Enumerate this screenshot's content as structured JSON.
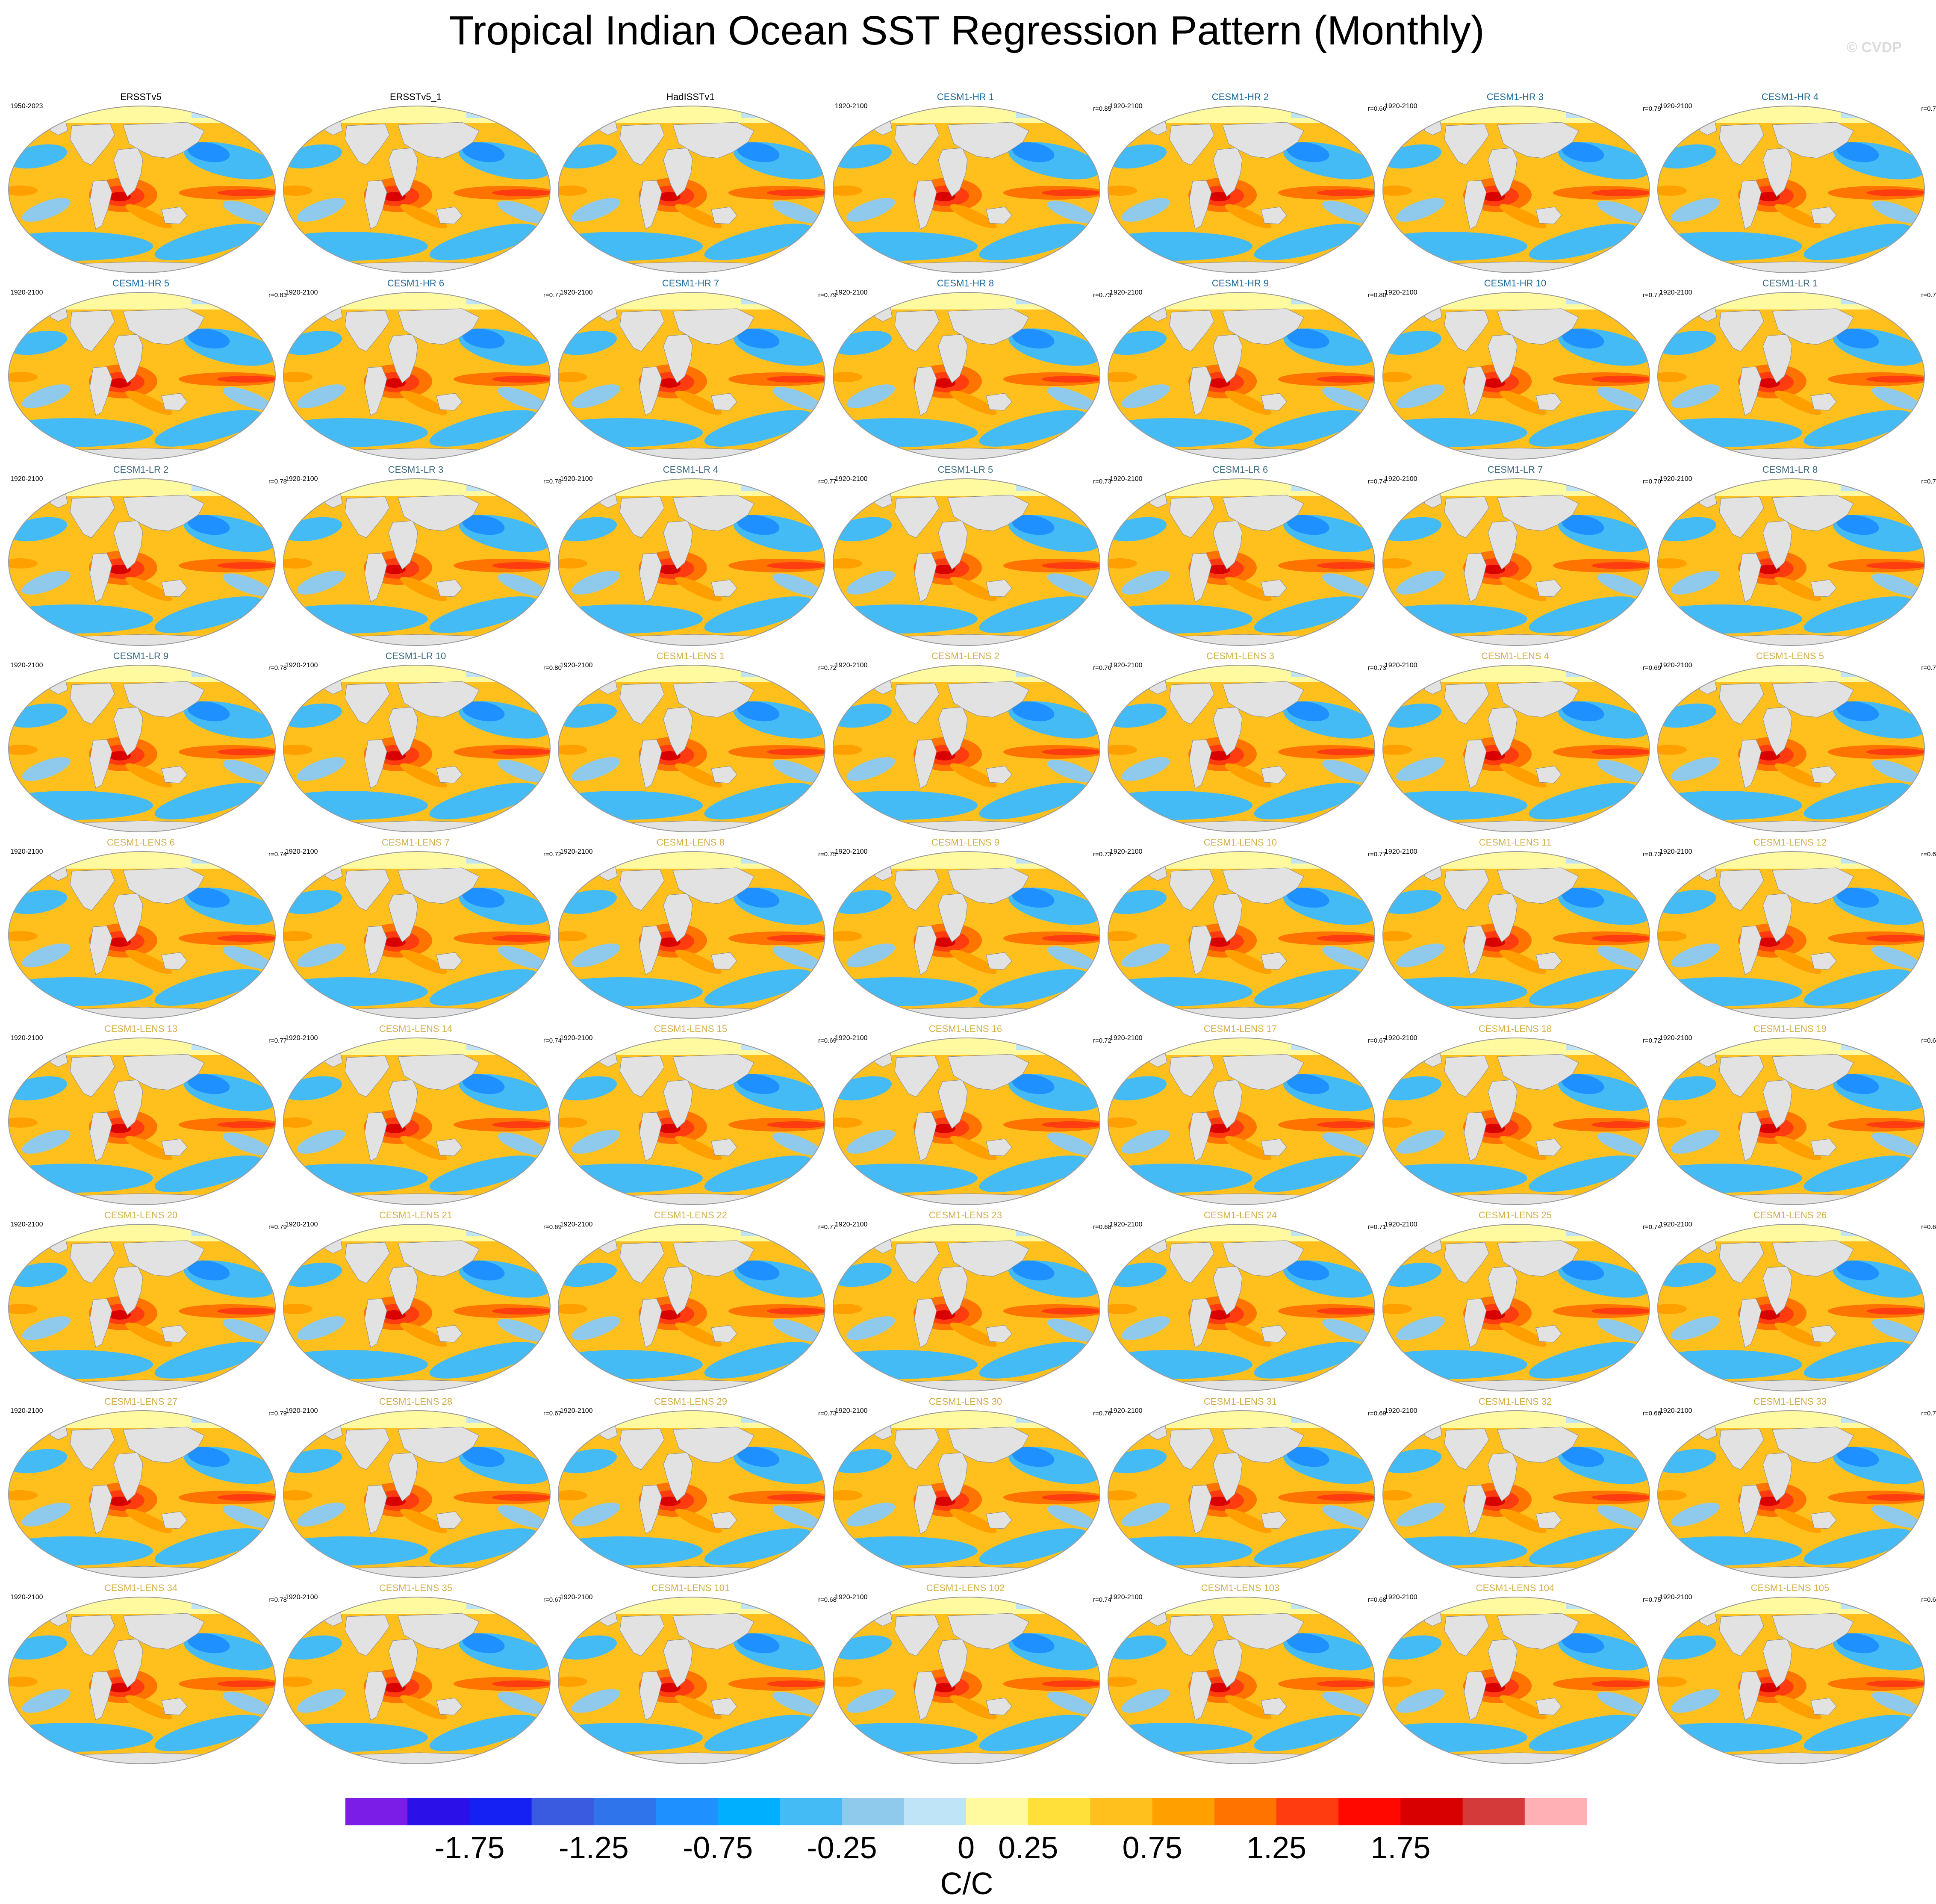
{
  "title": "Tropical Indian Ocean SST Regression Pattern (Monthly)",
  "watermark": "© CVDP",
  "colors": {
    "title_obs": "#000000",
    "title_hr": "#1a6a9a",
    "title_lr": "#3d6b80",
    "title_lens": "#d4b04a"
  },
  "chart_data": {
    "type": "map-grid",
    "units": "C/C",
    "colorbar": {
      "labels": [
        "-1.75",
        "-1.25",
        "-0.75",
        "-0.25",
        "0",
        "0.25",
        "0.75",
        "1.25",
        "1.75"
      ],
      "colors": [
        "#7b1de6",
        "#2b10e8",
        "#1421f2",
        "#3a5ae0",
        "#2f74ea",
        "#1e90ff",
        "#00b0ff",
        "#45bbf5",
        "#8fc9ec",
        "#bfe3f7",
        "#fffaa0",
        "#ffe03a",
        "#ffc01e",
        "#ffa000",
        "#ff7400",
        "#ff3c10",
        "#ff0800",
        "#d80000",
        "#d43a3a",
        "#ffb0b4"
      ]
    },
    "panels": [
      {
        "name": "ERSSTv5",
        "group": "obs",
        "period": "1950-2023",
        "r": ""
      },
      {
        "name": "ERSSTv5_1",
        "group": "obs",
        "period": "",
        "r": ""
      },
      {
        "name": "HadISSTv1",
        "group": "obs",
        "period": "",
        "r": ""
      },
      {
        "name": "CESM1-HR 1",
        "group": "hr",
        "period": "1920-2100",
        "r": "r=0.85"
      },
      {
        "name": "CESM1-HR 2",
        "group": "hr",
        "period": "1920-2100",
        "r": "r=0.66"
      },
      {
        "name": "CESM1-HR 3",
        "group": "hr",
        "period": "1920-2100",
        "r": "r=0.79"
      },
      {
        "name": "CESM1-HR 4",
        "group": "hr",
        "period": "1920-2100",
        "r": "r=0.7"
      },
      {
        "name": "CESM1-HR 5",
        "group": "hr",
        "period": "1920-2100",
        "r": "r=0.83"
      },
      {
        "name": "CESM1-HR 6",
        "group": "hr",
        "period": "1920-2100",
        "r": "r=0.77"
      },
      {
        "name": "CESM1-HR 7",
        "group": "hr",
        "period": "1920-2100",
        "r": "r=0.79"
      },
      {
        "name": "CESM1-HR 8",
        "group": "hr",
        "period": "1920-2100",
        "r": "r=0.73"
      },
      {
        "name": "CESM1-HR 9",
        "group": "hr",
        "period": "1920-2100",
        "r": "r=0.80"
      },
      {
        "name": "CESM1-HR 10",
        "group": "hr",
        "period": "1920-2100",
        "r": "r=0.77"
      },
      {
        "name": "CESM1-LR 1",
        "group": "lr",
        "period": "1920-2100",
        "r": "r=0.7"
      },
      {
        "name": "CESM1-LR 2",
        "group": "lr",
        "period": "1920-2100",
        "r": "r=0.78"
      },
      {
        "name": "CESM1-LR 3",
        "group": "lr",
        "period": "1920-2100",
        "r": "r=0.78"
      },
      {
        "name": "CESM1-LR 4",
        "group": "lr",
        "period": "1920-2100",
        "r": "r=0.77"
      },
      {
        "name": "CESM1-LR 5",
        "group": "lr",
        "period": "1920-2100",
        "r": "r=0.73"
      },
      {
        "name": "CESM1-LR 6",
        "group": "lr",
        "period": "1920-2100",
        "r": "r=0.74"
      },
      {
        "name": "CESM1-LR 7",
        "group": "lr",
        "period": "1920-2100",
        "r": "r=0.70"
      },
      {
        "name": "CESM1-LR 8",
        "group": "lr",
        "period": "1920-2100",
        "r": "r=0.7"
      },
      {
        "name": "CESM1-LR 9",
        "group": "lr",
        "period": "1920-2100",
        "r": "r=0.78"
      },
      {
        "name": "CESM1-LR 10",
        "group": "lr",
        "period": "1920-2100",
        "r": "r=0.80"
      },
      {
        "name": "CESM1-LENS 1",
        "group": "lens",
        "period": "1920-2100",
        "r": "r=0.72"
      },
      {
        "name": "CESM1-LENS 2",
        "group": "lens",
        "period": "1920-2100",
        "r": "r=0.76"
      },
      {
        "name": "CESM1-LENS 3",
        "group": "lens",
        "period": "1920-2100",
        "r": "r=0.73"
      },
      {
        "name": "CESM1-LENS 4",
        "group": "lens",
        "period": "1920-2100",
        "r": "r=0.69"
      },
      {
        "name": "CESM1-LENS 5",
        "group": "lens",
        "period": "1920-2100",
        "r": "r=0.7"
      },
      {
        "name": "CESM1-LENS 6",
        "group": "lens",
        "period": "1920-2100",
        "r": "r=0.74"
      },
      {
        "name": "CESM1-LENS 7",
        "group": "lens",
        "period": "1920-2100",
        "r": "r=0.72"
      },
      {
        "name": "CESM1-LENS 8",
        "group": "lens",
        "period": "1920-2100",
        "r": "r=0.75"
      },
      {
        "name": "CESM1-LENS 9",
        "group": "lens",
        "period": "1920-2100",
        "r": "r=0.73"
      },
      {
        "name": "CESM1-LENS 10",
        "group": "lens",
        "period": "1920-2100",
        "r": "r=0.77"
      },
      {
        "name": "CESM1-LENS 11",
        "group": "lens",
        "period": "1920-2100",
        "r": "r=0.73"
      },
      {
        "name": "CESM1-LENS 12",
        "group": "lens",
        "period": "1920-2100",
        "r": "r=0.6"
      },
      {
        "name": "CESM1-LENS 13",
        "group": "lens",
        "period": "1920-2100",
        "r": "r=0.77"
      },
      {
        "name": "CESM1-LENS 14",
        "group": "lens",
        "period": "1920-2100",
        "r": "r=0.74"
      },
      {
        "name": "CESM1-LENS 15",
        "group": "lens",
        "period": "1920-2100",
        "r": "r=0.69"
      },
      {
        "name": "CESM1-LENS 16",
        "group": "lens",
        "period": "1920-2100",
        "r": "r=0.72"
      },
      {
        "name": "CESM1-LENS 17",
        "group": "lens",
        "period": "1920-2100",
        "r": "r=0.67"
      },
      {
        "name": "CESM1-LENS 18",
        "group": "lens",
        "period": "1920-2100",
        "r": "r=0.72"
      },
      {
        "name": "CESM1-LENS 19",
        "group": "lens",
        "period": "1920-2100",
        "r": "r=0.6"
      },
      {
        "name": "CESM1-LENS 20",
        "group": "lens",
        "period": "1920-2100",
        "r": "r=0.79"
      },
      {
        "name": "CESM1-LENS 21",
        "group": "lens",
        "period": "1920-2100",
        "r": "r=0.69"
      },
      {
        "name": "CESM1-LENS 22",
        "group": "lens",
        "period": "1920-2100",
        "r": "r=0.77"
      },
      {
        "name": "CESM1-LENS 23",
        "group": "lens",
        "period": "1920-2100",
        "r": "r=0.68"
      },
      {
        "name": "CESM1-LENS 24",
        "group": "lens",
        "period": "1920-2100",
        "r": "r=0.71"
      },
      {
        "name": "CESM1-LENS 25",
        "group": "lens",
        "period": "1920-2100",
        "r": "r=0.74"
      },
      {
        "name": "CESM1-LENS 26",
        "group": "lens",
        "period": "1920-2100",
        "r": "r=0.6"
      },
      {
        "name": "CESM1-LENS 27",
        "group": "lens",
        "period": "1920-2100",
        "r": "r=0.79"
      },
      {
        "name": "CESM1-LENS 28",
        "group": "lens",
        "period": "1920-2100",
        "r": "r=0.67"
      },
      {
        "name": "CESM1-LENS 29",
        "group": "lens",
        "period": "1920-2100",
        "r": "r=0.73"
      },
      {
        "name": "CESM1-LENS 30",
        "group": "lens",
        "period": "1920-2100",
        "r": "r=0.76"
      },
      {
        "name": "CESM1-LENS 31",
        "group": "lens",
        "period": "1920-2100",
        "r": "r=0.69"
      },
      {
        "name": "CESM1-LENS 32",
        "group": "lens",
        "period": "1920-2100",
        "r": "r=0.66"
      },
      {
        "name": "CESM1-LENS 33",
        "group": "lens",
        "period": "1920-2100",
        "r": "r=0.7"
      },
      {
        "name": "CESM1-LENS 34",
        "group": "lens",
        "period": "1920-2100",
        "r": "r=0.78"
      },
      {
        "name": "CESM1-LENS 35",
        "group": "lens",
        "period": "1920-2100",
        "r": "r=0.67"
      },
      {
        "name": "CESM1-LENS 101",
        "group": "lens",
        "period": "1920-2100",
        "r": "r=0.68"
      },
      {
        "name": "CESM1-LENS 102",
        "group": "lens",
        "period": "1920-2100",
        "r": "r=0.74"
      },
      {
        "name": "CESM1-LENS 103",
        "group": "lens",
        "period": "1920-2100",
        "r": "r=0.68"
      },
      {
        "name": "CESM1-LENS 104",
        "group": "lens",
        "period": "1920-2100",
        "r": "r=0.75"
      },
      {
        "name": "CESM1-LENS 105",
        "group": "lens",
        "period": "1920-2100",
        "r": "r=0.6"
      }
    ]
  }
}
